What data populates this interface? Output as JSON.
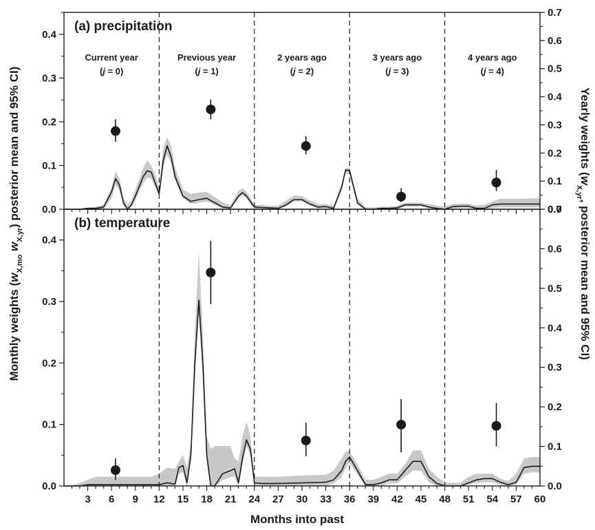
{
  "figure": {
    "xlabel": "Months into past",
    "ylabel_left_parts": [
      "Monthly weights (",
      "w",
      "X,mo",
      " ",
      "w",
      "X,yr",
      ") posterior mean and 95% CI)"
    ],
    "ylabel_right_parts": [
      "Yearly weights (",
      "w",
      "X,yr",
      ", posterior mean and 95% CI)"
    ],
    "year_labels": [
      {
        "line1": "Current year",
        "line2": [
          "(",
          "j",
          " = 0)"
        ]
      },
      {
        "line1": "Previous year",
        "line2": [
          "(",
          "j",
          " = 1)"
        ]
      },
      {
        "line1": "2 years ago",
        "line2": [
          "(",
          "j",
          " = 2)"
        ]
      },
      {
        "line1": "3 years ago",
        "line2": [
          "(",
          "j",
          " = 3)"
        ]
      },
      {
        "line1": "4 years ago",
        "line2": [
          "(",
          "j",
          " = 4)"
        ]
      }
    ]
  },
  "colors": {
    "band": "#c8c8c8",
    "line": "#1a1a1a",
    "points": "#1a1a1a",
    "divider": "#1a1a1a"
  },
  "chart_data": [
    {
      "type": "line",
      "title": "(a) precipitation",
      "xlabel": "Months into past",
      "ylabel": "Monthly weights (wX,mo wX,yr, posterior mean and 95% CI)",
      "y2label": "Yearly weights (wX,yr, posterior mean and 95% CI)",
      "xlim": [
        0,
        60
      ],
      "ylim": [
        0,
        0.45
      ],
      "y2lim": [
        0,
        0.7
      ],
      "x_ticks": [
        3,
        6,
        9,
        12,
        15,
        18,
        21,
        24,
        27,
        30,
        33,
        36,
        39,
        42,
        45,
        48,
        51,
        54,
        57,
        60
      ],
      "y_ticks": [
        "0.0",
        "0.1",
        "0.2",
        "0.3",
        "0.4"
      ],
      "y2_ticks": [
        "0.0",
        "0.1",
        "0.2",
        "0.3",
        "0.4",
        "0.5",
        "0.6",
        "0.7"
      ],
      "year_boundaries": [
        12,
        24,
        36,
        48
      ],
      "monthly_mean": {
        "x": [
          0,
          1,
          2,
          3,
          4,
          5,
          6,
          6.5,
          7,
          7.5,
          8,
          8.5,
          9,
          10,
          10.5,
          11,
          11.5,
          12,
          12.5,
          13,
          13.5,
          14,
          15,
          16,
          17,
          18,
          19,
          20,
          21,
          22,
          22.5,
          23,
          24,
          25,
          26,
          27,
          28,
          29,
          30,
          31,
          32,
          33,
          34,
          35,
          35.5,
          36,
          37,
          38,
          39,
          40,
          41,
          42,
          43,
          44,
          45,
          46,
          47,
          48,
          49,
          50,
          51,
          52,
          53,
          54,
          55,
          56,
          57,
          58,
          59,
          60
        ],
        "y": [
          0,
          0,
          0,
          0.002,
          0.002,
          0.005,
          0.04,
          0.07,
          0.055,
          0.015,
          0,
          0.01,
          0.03,
          0.075,
          0.088,
          0.085,
          0.06,
          0.035,
          0.11,
          0.145,
          0.12,
          0.075,
          0.03,
          0.018,
          0.022,
          0.025,
          0.015,
          0.005,
          0.003,
          0.03,
          0.038,
          0.03,
          0.005,
          0.004,
          0.003,
          0.002,
          0.01,
          0.022,
          0.022,
          0.012,
          0.005,
          0.006,
          0.002,
          0.05,
          0.09,
          0.088,
          0.015,
          0,
          0,
          0.002,
          0.002,
          0.003,
          0.01,
          0.01,
          0.01,
          0.005,
          0.002,
          0,
          0.006,
          0.007,
          0.007,
          0.002,
          0.002,
          0.01,
          0.012,
          0.012,
          0.012,
          0.012,
          0.012,
          0.012
        ]
      },
      "monthly_ci": {
        "x": [
          0,
          1,
          2,
          3,
          4,
          5,
          6,
          6.5,
          7,
          7.5,
          8,
          8.5,
          9,
          10,
          10.5,
          11,
          11.5,
          12,
          12.5,
          13,
          13.5,
          14,
          15,
          16,
          17,
          18,
          19,
          20,
          21,
          22,
          22.5,
          23,
          24,
          25,
          26,
          27,
          28,
          29,
          30,
          31,
          32,
          33,
          34,
          35,
          35.5,
          36,
          37,
          38,
          39,
          40,
          41,
          42,
          43,
          44,
          45,
          46,
          47,
          48,
          49,
          50,
          51,
          52,
          53,
          54,
          55,
          56,
          57,
          58,
          59,
          60
        ],
        "lower": [
          0,
          0,
          0,
          0,
          0,
          0,
          0.025,
          0.055,
          0.042,
          0.008,
          0,
          0.004,
          0.02,
          0.06,
          0.072,
          0.07,
          0.05,
          0.03,
          0.095,
          0.125,
          0.105,
          0.065,
          0.025,
          0.012,
          0.015,
          0.018,
          0.01,
          0.002,
          0,
          0.025,
          0.032,
          0.025,
          0.002,
          0,
          0,
          0,
          0.006,
          0.018,
          0.018,
          0.008,
          0.002,
          0.003,
          0,
          0.045,
          0.082,
          0.08,
          0.01,
          0,
          0,
          0,
          0,
          0,
          0.006,
          0.006,
          0.006,
          0.002,
          0,
          0,
          0.002,
          0.003,
          0.003,
          0,
          0,
          0.003,
          0.004,
          0.004,
          0.004,
          0.004,
          0.004,
          0.004
        ],
        "upper": [
          0,
          0,
          0,
          0.004,
          0.005,
          0.01,
          0.05,
          0.088,
          0.07,
          0.025,
          0.01,
          0.02,
          0.045,
          0.095,
          0.112,
          0.1,
          0.08,
          0.05,
          0.14,
          0.165,
          0.145,
          0.095,
          0.045,
          0.035,
          0.038,
          0.04,
          0.028,
          0.015,
          0.01,
          0.042,
          0.048,
          0.04,
          0.01,
          0.01,
          0.008,
          0.008,
          0.02,
          0.032,
          0.03,
          0.02,
          0.012,
          0.012,
          0.008,
          0.06,
          0.095,
          0.095,
          0.025,
          0.005,
          0.004,
          0.006,
          0.006,
          0.008,
          0.015,
          0.015,
          0.015,
          0.012,
          0.008,
          0.006,
          0.012,
          0.013,
          0.013,
          0.008,
          0.01,
          0.018,
          0.024,
          0.024,
          0.024,
          0.024,
          0.025,
          0.025
        ]
      },
      "yearly_weights": {
        "x": [
          6.5,
          18.5,
          30.5,
          42.5,
          54.5
        ],
        "mean": [
          0.278,
          0.355,
          0.225,
          0.045,
          0.095
        ],
        "lower": [
          0.24,
          0.32,
          0.195,
          0.025,
          0.065
        ],
        "upper": [
          0.32,
          0.39,
          0.26,
          0.075,
          0.14
        ]
      }
    },
    {
      "type": "line",
      "title": "(b) temperature",
      "xlabel": "Months into past",
      "ylabel": "Monthly weights (wX,mo wX,yr, posterior mean and 95% CI)",
      "y2label": "Yearly weights (wX,yr, posterior mean and 95% CI)",
      "xlim": [
        0,
        60
      ],
      "ylim": [
        0,
        0.45
      ],
      "y2lim": [
        0,
        0.7
      ],
      "x_ticks": [
        3,
        6,
        9,
        12,
        15,
        18,
        21,
        24,
        27,
        30,
        33,
        36,
        39,
        42,
        45,
        48,
        51,
        54,
        57,
        60
      ],
      "y_ticks": [
        "0.0",
        "0.1",
        "0.2",
        "0.3",
        "0.4"
      ],
      "y2_ticks": [
        "0.0",
        "0.1",
        "0.2",
        "0.3",
        "0.4",
        "0.5",
        "0.6",
        "0.7"
      ],
      "year_boundaries": [
        12,
        24,
        36,
        48
      ],
      "monthly_mean": {
        "x": [
          0,
          1,
          2,
          3,
          4,
          5,
          6,
          7,
          8,
          9,
          10,
          11,
          12,
          13,
          14,
          14.5,
          15,
          15.5,
          16,
          16.5,
          17,
          17.5,
          18,
          18.5,
          19,
          19.5,
          20,
          21,
          21.5,
          22,
          22.5,
          23,
          23.5,
          24,
          25,
          27,
          30,
          33,
          34,
          35,
          35.5,
          36,
          37,
          38,
          39,
          40,
          41,
          42,
          43,
          44,
          45,
          46,
          47,
          48,
          49,
          50,
          51,
          52,
          53,
          54,
          55,
          56,
          57,
          58,
          59,
          60
        ],
        "y": [
          0,
          0,
          0,
          0.002,
          0.002,
          0.002,
          0.002,
          0.002,
          0.002,
          0.002,
          0.002,
          0.002,
          0.002,
          0.005,
          0.003,
          0.03,
          0.033,
          0.005,
          0.05,
          0.2,
          0.302,
          0.2,
          0.05,
          0,
          0,
          0.01,
          0.02,
          0.025,
          0.028,
          0.005,
          0.045,
          0.075,
          0.06,
          0.005,
          0.004,
          0.004,
          0.005,
          0.006,
          0.01,
          0.025,
          0.04,
          0.047,
          0.025,
          0.002,
          0.002,
          0.005,
          0.01,
          0.01,
          0.025,
          0.04,
          0.04,
          0.015,
          0.004,
          0,
          0,
          0,
          0.005,
          0.01,
          0.012,
          0.012,
          0.006,
          0.002,
          0.006,
          0.03,
          0.032,
          0.032
        ]
      },
      "monthly_ci": {
        "x": [
          0,
          1,
          2,
          3,
          4,
          5,
          6,
          7,
          8,
          9,
          10,
          11,
          12,
          13,
          14,
          14.5,
          15,
          15.5,
          16,
          16.5,
          17,
          17.5,
          18,
          18.5,
          19,
          19.5,
          20,
          21,
          21.5,
          22,
          22.5,
          23,
          23.5,
          24,
          25,
          27,
          30,
          33,
          34,
          35,
          35.5,
          36,
          37,
          38,
          39,
          40,
          41,
          42,
          43,
          44,
          45,
          46,
          47,
          48,
          49,
          50,
          51,
          52,
          53,
          54,
          55,
          56,
          57,
          58,
          59,
          60
        ],
        "lower": [
          0,
          0,
          0,
          0,
          0,
          0,
          0,
          0,
          0,
          0,
          0,
          0,
          0,
          0,
          0,
          0.02,
          0.022,
          0,
          0.04,
          0.18,
          0.28,
          0.18,
          0.04,
          0,
          0,
          0.004,
          0.01,
          0.014,
          0.016,
          0,
          0.035,
          0.065,
          0.05,
          0,
          0,
          0,
          0,
          0,
          0.004,
          0.015,
          0.03,
          0.038,
          0.018,
          0,
          0,
          0,
          0.004,
          0.004,
          0.015,
          0.025,
          0.025,
          0.006,
          0,
          0,
          0,
          0,
          0.002,
          0.005,
          0.006,
          0.006,
          0.002,
          0,
          0.002,
          0.02,
          0.022,
          0.022
        ],
        "upper": [
          0,
          0,
          0.005,
          0.01,
          0.015,
          0.015,
          0.015,
          0.015,
          0.015,
          0.015,
          0.015,
          0.015,
          0.02,
          0.03,
          0.028,
          0.04,
          0.05,
          0.03,
          0.07,
          0.25,
          0.382,
          0.25,
          0.08,
          0.06,
          0.065,
          0.065,
          0.065,
          0.065,
          0.045,
          0.04,
          0.08,
          0.105,
          0.08,
          0.015,
          0.015,
          0.015,
          0.017,
          0.018,
          0.025,
          0.045,
          0.056,
          0.056,
          0.035,
          0.01,
          0.01,
          0.015,
          0.02,
          0.02,
          0.035,
          0.058,
          0.058,
          0.028,
          0.015,
          0.005,
          0.005,
          0.005,
          0.015,
          0.02,
          0.02,
          0.02,
          0.012,
          0.008,
          0.02,
          0.045,
          0.047,
          0.047
        ]
      },
      "yearly_weights": {
        "x": [
          6.5,
          18.5,
          30.5,
          42.5,
          54.5
        ],
        "mean": [
          0.04,
          0.54,
          0.115,
          0.155,
          0.152
        ],
        "lower": [
          0.015,
          0.46,
          0.075,
          0.085,
          0.1
        ],
        "upper": [
          0.07,
          0.62,
          0.16,
          0.22,
          0.21
        ]
      }
    }
  ]
}
